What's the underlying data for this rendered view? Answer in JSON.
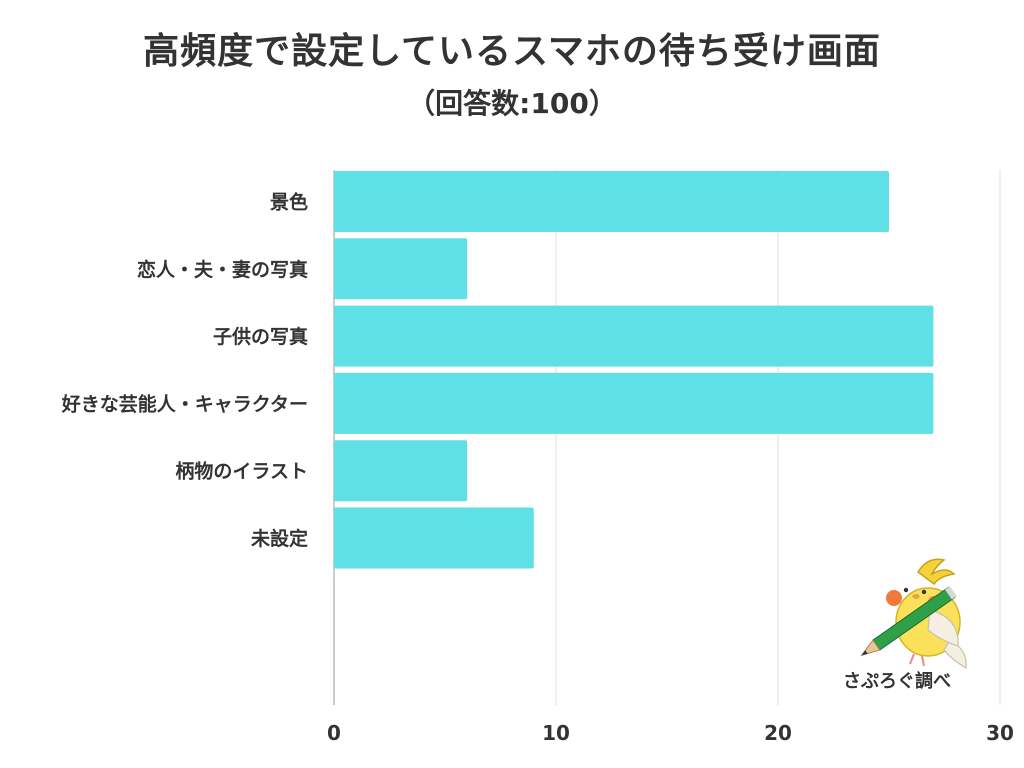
{
  "chart_data": {
    "type": "bar",
    "orientation": "horizontal",
    "title": "高頻度で設定しているスマホの待ち受け画面",
    "subtitle": "（回答数:100）",
    "categories": [
      "景色",
      "恋人・夫・妻の写真",
      "子供の写真",
      "好きな芸能人・キャラクター",
      "柄物のイラスト",
      "未設定"
    ],
    "values": [
      25,
      6,
      27,
      27,
      6,
      9
    ],
    "xlim": [
      0,
      30
    ],
    "xticks": [
      "0",
      "10",
      "20",
      "30"
    ],
    "grid": true,
    "colors": {
      "bar": "#5ee0e6",
      "grid": "#dddddd",
      "axis": "#bbbbbb"
    }
  },
  "credit": "さぷろぐ調べ",
  "mascot_icon": "cockatiel-with-pencil-icon"
}
